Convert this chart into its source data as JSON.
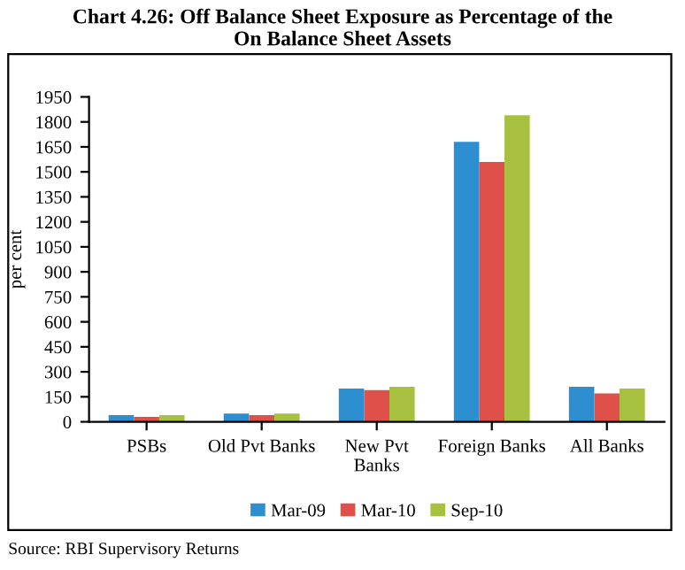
{
  "chart_data": {
    "type": "bar",
    "title": "Chart 4.26: Off Balance Sheet Exposure as Percentage of the\nOn Balance Sheet Assets",
    "ylabel": "per cent",
    "categories": [
      "PSBs",
      "Old Pvt Banks",
      "New Pvt\nBanks",
      "Foreign Banks",
      "All Banks"
    ],
    "series": [
      {
        "name": "Mar-09",
        "color": "#2e8fd0",
        "values": [
          40,
          50,
          200,
          1680,
          210
        ]
      },
      {
        "name": "Mar-10",
        "color": "#e0504a",
        "values": [
          30,
          40,
          190,
          1560,
          170
        ]
      },
      {
        "name": "Sep-10",
        "color": "#a8c040",
        "values": [
          40,
          50,
          210,
          1840,
          200
        ]
      }
    ],
    "ylim": [
      0,
      1950
    ],
    "yticks": [
      0,
      150,
      300,
      450,
      600,
      750,
      900,
      1050,
      1200,
      1350,
      1500,
      1650,
      1800,
      1950
    ],
    "grid": false,
    "legend": "bottom",
    "annotations": [
      "Source: RBI Supervisory Returns"
    ]
  }
}
